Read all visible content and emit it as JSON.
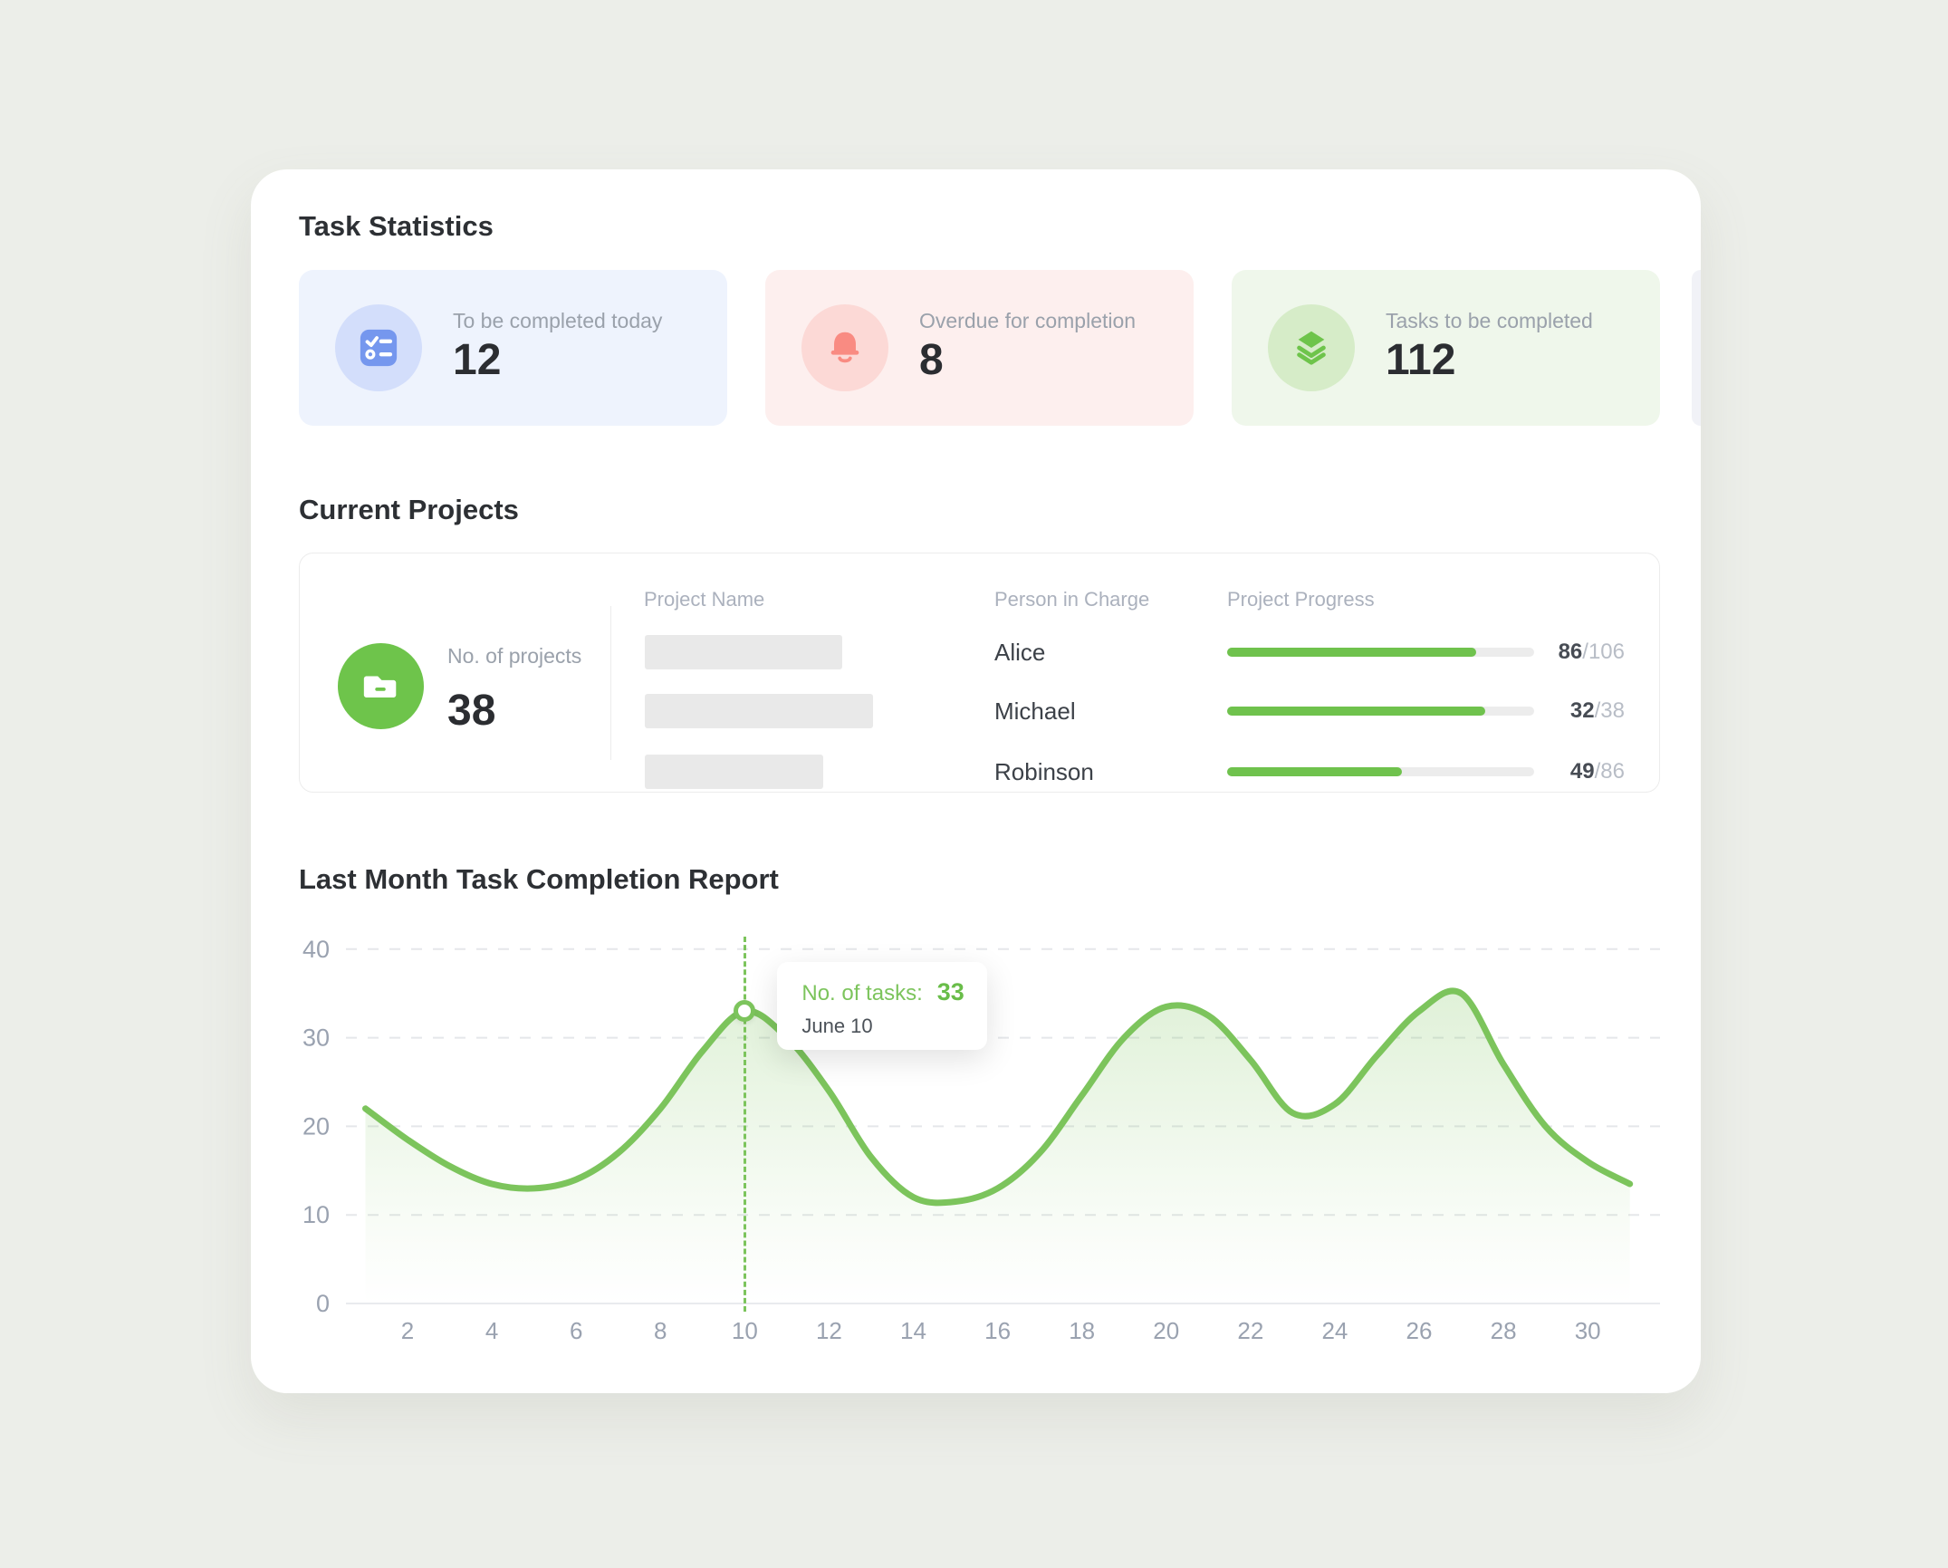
{
  "stats": {
    "section_title": "Task Statistics",
    "cards": [
      {
        "icon": "checklist-icon",
        "label": "To be completed today",
        "value": "12",
        "bg": "#eef3fd",
        "circle": "#d3defb",
        "icon_color": "#7597ee"
      },
      {
        "icon": "bell-icon",
        "label": "Overdue for completion",
        "value": "8",
        "bg": "#fdefee",
        "circle": "#fcd9d6",
        "icon_color": "#f98b82"
      },
      {
        "icon": "layers-icon",
        "label": "Tasks to be completed",
        "value": "112",
        "bg": "#eff7eb",
        "circle": "#d6ecc8",
        "icon_color": "#6ec44b"
      }
    ]
  },
  "projects": {
    "section_title": "Current Projects",
    "summary": {
      "icon": "folder-icon",
      "label": "No. of projects",
      "value": "38",
      "circle": "#6ec44b"
    },
    "table": {
      "headers": {
        "name": "Project Name",
        "person": "Person in Charge",
        "progress": "Project Progress"
      },
      "separator": "/",
      "rows": [
        {
          "person": "Alice",
          "done": 86,
          "total": 106
        },
        {
          "person": "Michael",
          "done": 32,
          "total": 38
        },
        {
          "person": "Robinson",
          "done": 49,
          "total": 86
        }
      ]
    }
  },
  "report": {
    "section_title": "Last Month Task Completion Report"
  },
  "chart_data": {
    "type": "area",
    "title": "Last Month Task Completion Report",
    "x": [
      1,
      2,
      3,
      4,
      5,
      6,
      7,
      8,
      9,
      10,
      11,
      12,
      13,
      14,
      15,
      16,
      17,
      18,
      19,
      20,
      21,
      22,
      23,
      24,
      25,
      26,
      27,
      28,
      29,
      30,
      31
    ],
    "values": [
      22,
      18.5,
      15.5,
      13.5,
      13,
      14,
      17,
      22,
      28.5,
      33,
      30,
      24,
      16.5,
      12,
      11.5,
      13,
      17,
      23.5,
      30,
      33.5,
      32.5,
      27.5,
      21.5,
      22.5,
      28,
      33,
      35,
      27,
      20,
      16,
      13.5
    ],
    "x_ticks": [
      2,
      4,
      6,
      8,
      10,
      12,
      14,
      16,
      18,
      20,
      22,
      24,
      26,
      28,
      30
    ],
    "y_ticks": [
      0,
      10,
      20,
      30,
      40
    ],
    "ylim": [
      0,
      40
    ],
    "grid": "dashed-horizontal",
    "legend": "none",
    "line_color": "#7cc45c",
    "area_color": "#7cc45c",
    "highlight": {
      "x": 10,
      "value": 33,
      "label": "No. of tasks:",
      "date": "June 10"
    }
  }
}
